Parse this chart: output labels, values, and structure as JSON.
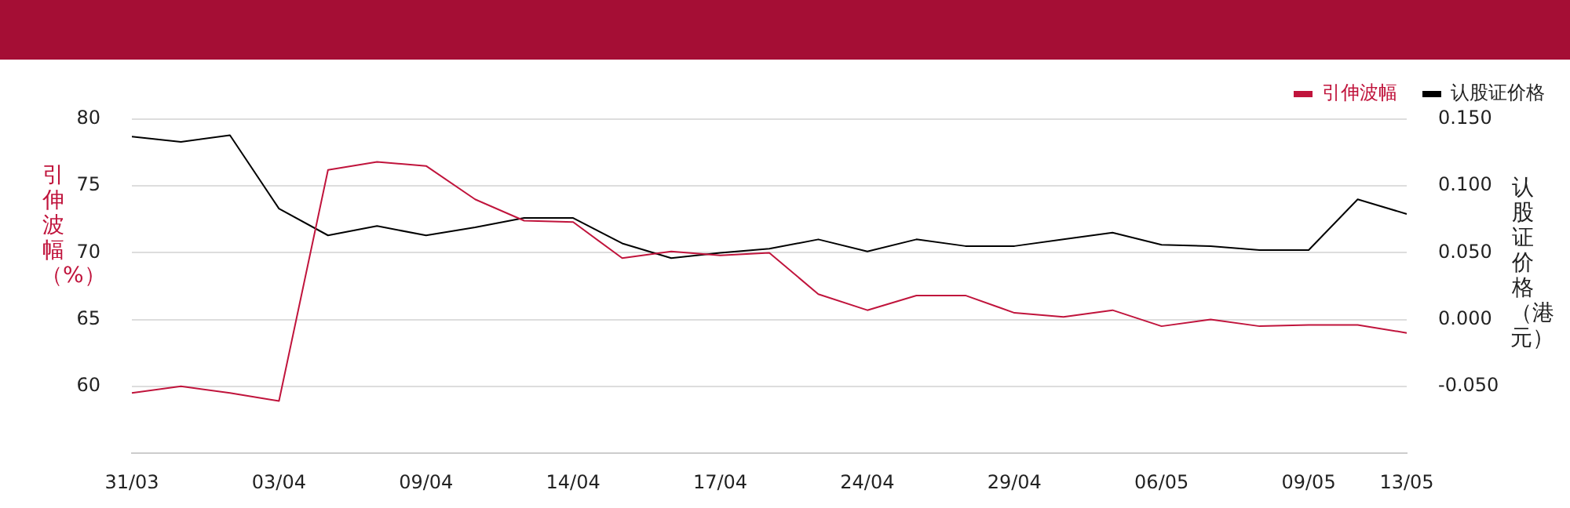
{
  "chart_data": {
    "type": "line",
    "ylabel": "引伸波幅（%）",
    "y2label": "认股证价格（港元）",
    "categories": [
      "31/03",
      null,
      null,
      "03/04",
      null,
      null,
      "09/04",
      null,
      null,
      "14/04",
      null,
      null,
      "17/04",
      null,
      null,
      "24/04",
      null,
      null,
      "29/04",
      null,
      null,
      "06/05",
      null,
      null,
      "09/05",
      null,
      "13/05"
    ],
    "series": [
      {
        "name": "引伸波幅",
        "color": "#c0143c",
        "values": [
          59.5,
          60.0,
          59.5,
          58.9,
          76.2,
          76.8,
          76.5,
          74.0,
          72.4,
          72.3,
          69.6,
          70.1,
          69.8,
          70.0,
          66.9,
          65.7,
          66.8,
          66.8,
          65.5,
          65.2,
          65.7,
          64.5,
          65.0,
          64.5,
          64.6,
          64.6,
          64.0
        ]
      },
      {
        "name": "认股证价格",
        "color": "#000000",
        "axis": "y2",
        "values": [
          0.137,
          0.133,
          0.138,
          0.083,
          0.063,
          0.07,
          0.063,
          0.069,
          0.076,
          0.076,
          0.057,
          0.046,
          0.05,
          0.053,
          0.06,
          0.051,
          0.06,
          0.055,
          0.055,
          0.06,
          0.065,
          0.056,
          0.055,
          0.052,
          0.052,
          0.09,
          0.079
        ]
      }
    ],
    "ylim": [
      55,
      80
    ],
    "yticks": [
      60,
      65,
      70,
      75,
      80
    ],
    "y2lim": [
      -0.1,
      0.15
    ],
    "y2ticks": [
      {
        "value": -0.05,
        "label": "-0.050"
      },
      {
        "value": 0,
        "label": "0.000"
      },
      {
        "value": 0.05,
        "label": "0.050"
      },
      {
        "value": 0.1,
        "label": "0.100"
      },
      {
        "value": 0.15,
        "label": "0.150"
      }
    ],
    "grid": "y",
    "legend": "top right",
    "marker": "none",
    "line_style": "solid"
  }
}
